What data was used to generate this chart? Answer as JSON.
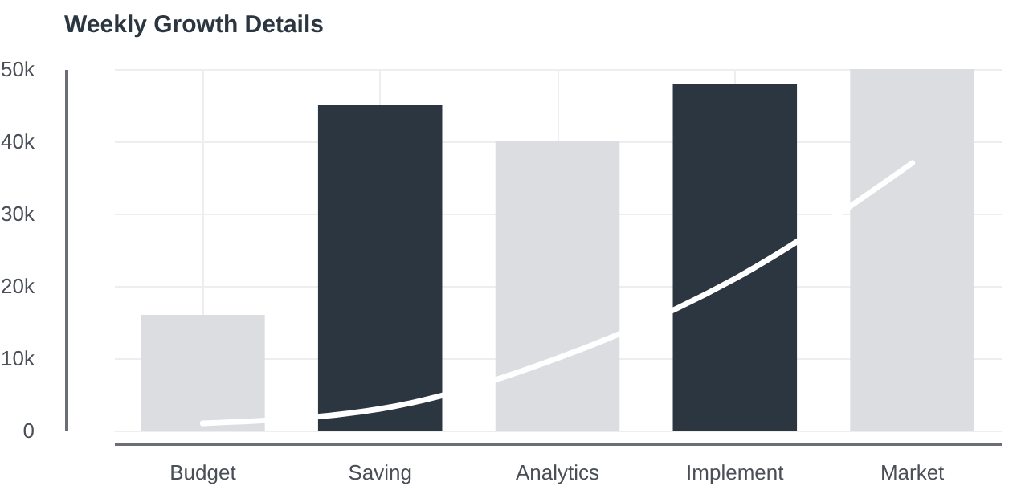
{
  "chart_data": {
    "type": "bar",
    "title": "Weekly Growth Details",
    "categories": [
      "Budget",
      "Saving",
      "Analytics",
      "Implement",
      "Market"
    ],
    "series": [
      {
        "values": [
          16000,
          45000,
          40000,
          48000,
          50000
        ],
        "colors": [
          "#dcdde0",
          "#2b3641",
          "#dcdde0",
          "#2b3641",
          "#dcdde0"
        ]
      },
      {
        "type": "line",
        "color": "#ffffff",
        "values": [
          1000,
          3000,
          10000,
          21000,
          37000
        ],
        "marker": "none"
      }
    ],
    "ylim": [
      0,
      50000
    ],
    "yticks": [
      {
        "value": 0,
        "label": "0"
      },
      {
        "value": 10000,
        "label": "10k"
      },
      {
        "value": 20000,
        "label": "20k"
      },
      {
        "value": 30000,
        "label": "30k"
      },
      {
        "value": 40000,
        "label": "40k"
      },
      {
        "value": 50000,
        "label": "50k"
      }
    ],
    "grid": true
  }
}
